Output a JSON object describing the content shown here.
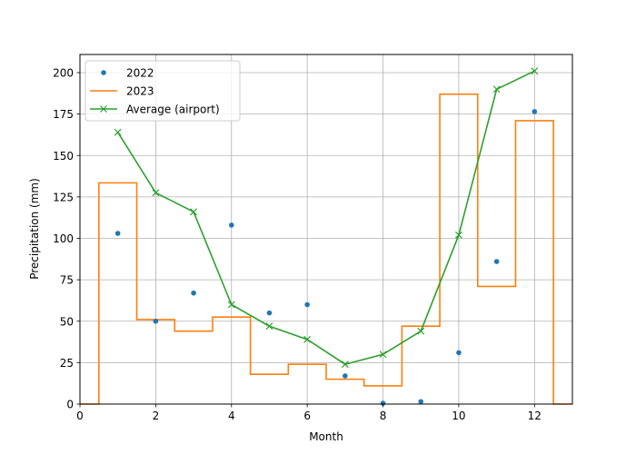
{
  "chart_data": {
    "type": "line",
    "title": "",
    "xlabel": "Month",
    "ylabel": "Precipitation (mm)",
    "xlim": [
      0,
      13
    ],
    "ylim": [
      0,
      211
    ],
    "grid": true,
    "legend_position": "upper left",
    "x_ticks": [
      0,
      2,
      4,
      6,
      8,
      10,
      12
    ],
    "y_ticks": [
      0,
      25,
      50,
      75,
      100,
      125,
      150,
      175,
      200
    ],
    "x": [
      1,
      2,
      3,
      4,
      5,
      6,
      7,
      8,
      9,
      10,
      11,
      12
    ],
    "series": [
      {
        "name": "2022",
        "style": "scatter",
        "color": "#1f77b4",
        "values": [
          103,
          50,
          67,
          108,
          55,
          60,
          17,
          0.5,
          1.5,
          31,
          86,
          176.5
        ]
      },
      {
        "name": "2023",
        "style": "step-mid",
        "color": "#ff7f0e",
        "x": [
          0,
          1,
          2,
          3,
          4,
          5,
          6,
          7,
          8,
          9,
          10,
          11,
          12,
          13
        ],
        "values": [
          0,
          133.5,
          51,
          44,
          52.5,
          18,
          24,
          15,
          11,
          47,
          187,
          71,
          171,
          0
        ]
      },
      {
        "name": "Average (airport)",
        "style": "line-x-marker",
        "color": "#2ca02c",
        "values": [
          164,
          127.5,
          116,
          60,
          47,
          39,
          24,
          30,
          44,
          102,
          190,
          201
        ]
      }
    ]
  }
}
